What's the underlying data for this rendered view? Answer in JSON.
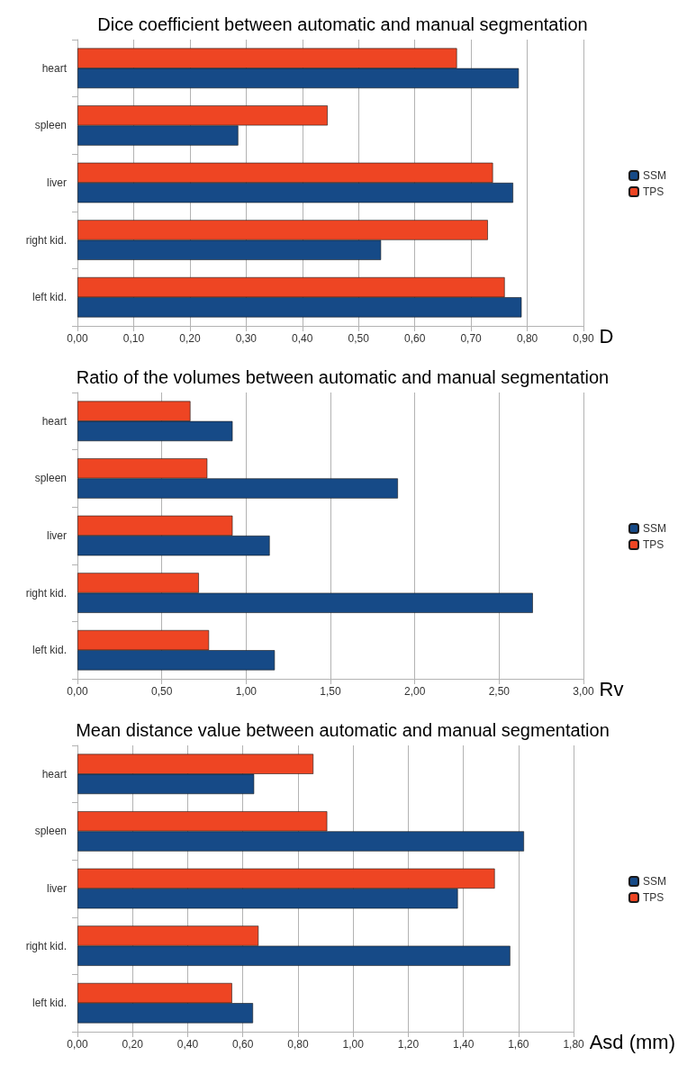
{
  "chart_data": [
    {
      "type": "bar",
      "orientation": "horizontal",
      "title": "Dice coefficient between automatic and manual segmentation",
      "xlabel": "D",
      "categories": [
        "heart",
        "spleen",
        "liver",
        "right kid.",
        "left kid."
      ],
      "series": [
        {
          "name": "SSM",
          "color": "#164a87",
          "values": [
            0.785,
            0.286,
            0.775,
            0.54,
            0.79
          ]
        },
        {
          "name": "TPS",
          "color": "#ee4523",
          "values": [
            0.675,
            0.445,
            0.739,
            0.73,
            0.76
          ]
        }
      ],
      "xlim": [
        0,
        0.9
      ],
      "xticks": [
        {
          "value": 0,
          "label": "0,00"
        },
        {
          "value": 0.1,
          "label": "0,10"
        },
        {
          "value": 0.2,
          "label": "0,20"
        },
        {
          "value": 0.3,
          "label": "0,30"
        },
        {
          "value": 0.4,
          "label": "0,40"
        },
        {
          "value": 0.5,
          "label": "0,50"
        },
        {
          "value": 0.6,
          "label": "0,60"
        },
        {
          "value": 0.7,
          "label": "0,70"
        },
        {
          "value": 0.8,
          "label": "0,80"
        },
        {
          "value": 0.9,
          "label": "0,90"
        }
      ],
      "grid": "x",
      "legend": "right"
    },
    {
      "type": "bar",
      "orientation": "horizontal",
      "title": "Ratio of the volumes between automatic and manual segmentation",
      "xlabel": "Rv",
      "categories": [
        "heart",
        "spleen",
        "liver",
        "right kid.",
        "left kid."
      ],
      "series": [
        {
          "name": "SSM",
          "color": "#164a87",
          "values": [
            0.92,
            1.9,
            1.14,
            2.7,
            1.17
          ]
        },
        {
          "name": "TPS",
          "color": "#ee4523",
          "values": [
            0.67,
            0.77,
            0.92,
            0.72,
            0.78
          ]
        }
      ],
      "xlim": [
        0,
        3
      ],
      "xticks": [
        {
          "value": 0,
          "label": "0,00"
        },
        {
          "value": 0.5,
          "label": "0,50"
        },
        {
          "value": 1,
          "label": "1,00"
        },
        {
          "value": 1.5,
          "label": "1,50"
        },
        {
          "value": 2,
          "label": "2,00"
        },
        {
          "value": 2.5,
          "label": "2,50"
        },
        {
          "value": 3,
          "label": "3,00"
        }
      ],
      "grid": "x",
      "legend": "right"
    },
    {
      "type": "bar",
      "orientation": "horizontal",
      "title": "Mean distance value between automatic and manual segmentation",
      "xlabel": "Asd (mm)",
      "categories": [
        "heart",
        "spleen",
        "liver",
        "right kid.",
        "left kid."
      ],
      "series": [
        {
          "name": "SSM",
          "color": "#164a87",
          "values": [
            0.641,
            1.62,
            1.38,
            1.57,
            0.637
          ]
        },
        {
          "name": "TPS",
          "color": "#ee4523",
          "values": [
            0.856,
            0.906,
            1.514,
            0.657,
            0.561
          ]
        }
      ],
      "xlim": [
        0,
        1.8
      ],
      "xticks": [
        {
          "value": 0,
          "label": "0,00"
        },
        {
          "value": 0.2,
          "label": "0,20"
        },
        {
          "value": 0.4,
          "label": "0,40"
        },
        {
          "value": 0.6,
          "label": "0,60"
        },
        {
          "value": 0.8,
          "label": "0,80"
        },
        {
          "value": 1,
          "label": "1,00"
        },
        {
          "value": 1.2,
          "label": "1,20"
        },
        {
          "value": 1.4,
          "label": "1,40"
        },
        {
          "value": 1.6,
          "label": "1,60"
        },
        {
          "value": 1.8,
          "label": "1,80"
        }
      ],
      "grid": "x",
      "legend": "right"
    }
  ]
}
